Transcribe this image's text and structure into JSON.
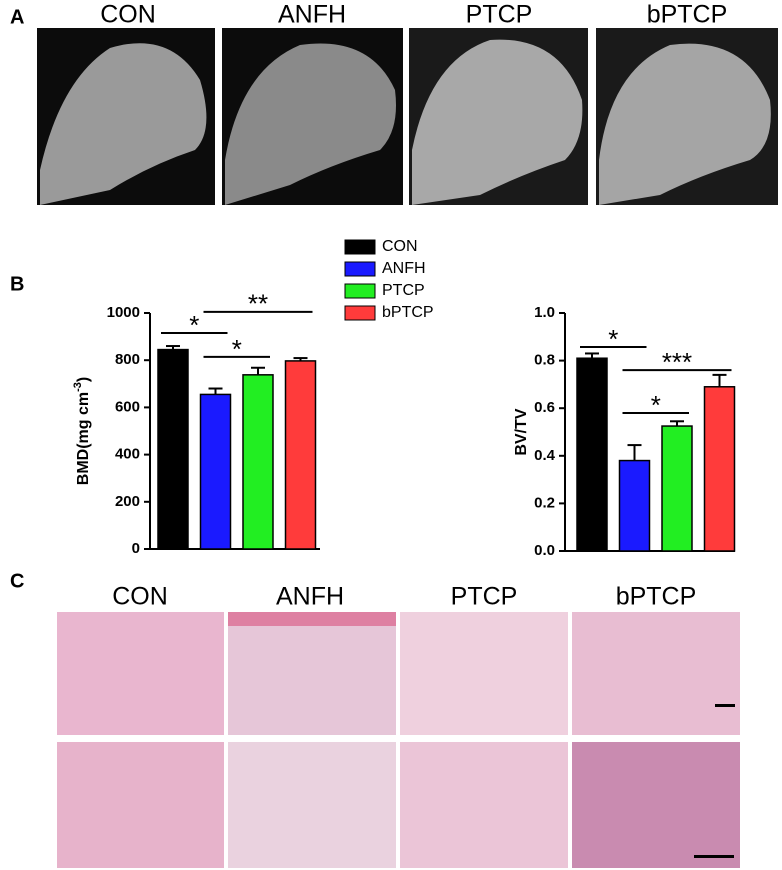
{
  "panel_labels": [
    "A",
    "B",
    "C"
  ],
  "ct_titles": [
    "CON",
    "ANFH",
    "PTCP",
    "bPTCP"
  ],
  "histology_titles": [
    "CON",
    "ANFH",
    "PTCP",
    "bPTCP"
  ],
  "legend": {
    "names": [
      "CON",
      "ANFH",
      "PTCP",
      "bPTCP"
    ],
    "colors": [
      "#000000",
      "#1a1aff",
      "#22ee22",
      "#ff3b3b"
    ]
  },
  "chart_data": [
    {
      "type": "bar",
      "ylabel": "BMD(mg cm",
      "ylabel_superscript": "-3",
      "ylabel_suffix": ")",
      "values": [
        845,
        655,
        738,
        797
      ],
      "errors": [
        15,
        25,
        30,
        12
      ],
      "ylim": [
        0,
        1000
      ],
      "yticks": [
        0,
        200,
        400,
        600,
        800,
        1000
      ],
      "annotations": [
        {
          "from": 0,
          "to": 1,
          "level": 915,
          "label": "*"
        },
        {
          "from": 1,
          "to": 2,
          "level": 814,
          "label": "*"
        },
        {
          "from": 1,
          "to": 3,
          "level": 1005,
          "label": "**"
        }
      ]
    },
    {
      "type": "bar",
      "ylabel": "BV/TV",
      "values": [
        0.81,
        0.38,
        0.525,
        0.69
      ],
      "errors": [
        0.02,
        0.065,
        0.02,
        0.05
      ],
      "ylim": [
        0,
        1
      ],
      "yticks": [
        {
          "value": 0,
          "label": "0.0"
        },
        0.2,
        0.4,
        0.6,
        0.8,
        {
          "value": 1,
          "label": "1.0"
        }
      ],
      "annotations": [
        {
          "from": 0,
          "to": 1,
          "level": 0.857,
          "label": "*"
        },
        {
          "from": 1,
          "to": 3,
          "level": 0.76,
          "label": "***"
        },
        {
          "from": 1,
          "to": 2,
          "level": 0.58,
          "label": "*"
        }
      ]
    }
  ]
}
